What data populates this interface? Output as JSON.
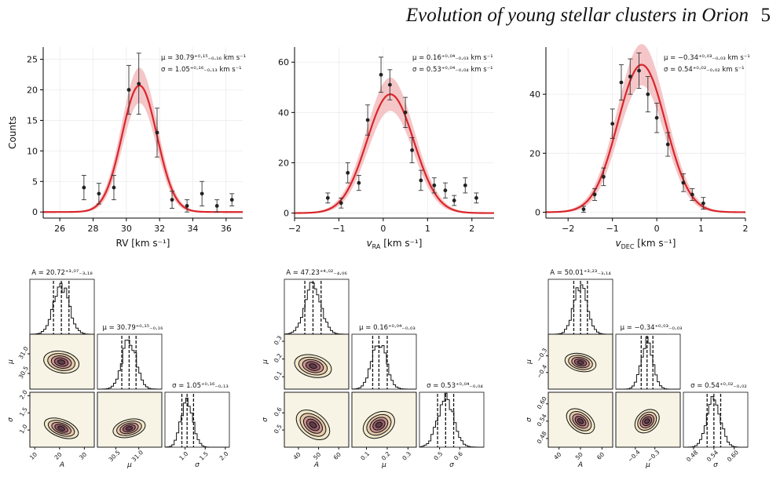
{
  "header": {
    "title": "Evolution of young stellar clusters in Orion",
    "page_number": "5"
  },
  "chart_data": [
    {
      "type": "scatter",
      "xlabel": "RV [km s⁻¹]",
      "ylabel": "Counts",
      "xlim": [
        25.0,
        37.0
      ],
      "ylim": [
        -1,
        27
      ],
      "xticks": [
        26,
        28,
        30,
        32,
        34,
        36
      ],
      "yticks": [
        0,
        5,
        10,
        15,
        20,
        25
      ],
      "points": [
        [
          27.45,
          4
        ],
        [
          28.35,
          3
        ],
        [
          29.25,
          4
        ],
        [
          30.15,
          20
        ],
        [
          30.75,
          21
        ],
        [
          31.85,
          13
        ],
        [
          32.75,
          2
        ],
        [
          33.65,
          1
        ],
        [
          34.55,
          3
        ],
        [
          35.45,
          1
        ],
        [
          36.35,
          2
        ]
      ],
      "errors": [
        2.0,
        1.7,
        2.0,
        4.0,
        5.0,
        4.0,
        1.4,
        1.0,
        2.0,
        1.0,
        1.0
      ],
      "fit": {
        "A": 20.72,
        "mu": 30.79,
        "sigma": 1.05
      },
      "annotations": [
        "μ = 30.79⁺⁰·¹⁵₋₀.₁₆ km s⁻¹",
        "σ = 1.05⁺⁰·¹⁶₋₀.₁₃ km s⁻¹"
      ],
      "grid": true
    },
    {
      "type": "scatter",
      "xlabel": "v_RA [km s⁻¹]",
      "ylabel": "",
      "xlim": [
        -2.0,
        2.5
      ],
      "ylim": [
        -2,
        66
      ],
      "xticks": [
        -2,
        -1,
        0,
        1,
        2
      ],
      "yticks": [
        0,
        20,
        40,
        60
      ],
      "points": [
        [
          -1.25,
          6
        ],
        [
          -0.95,
          4
        ],
        [
          -0.8,
          16
        ],
        [
          -0.55,
          12
        ],
        [
          -0.35,
          37
        ],
        [
          -0.05,
          55
        ],
        [
          0.15,
          51
        ],
        [
          0.5,
          40
        ],
        [
          0.65,
          25
        ],
        [
          0.85,
          13
        ],
        [
          1.15,
          11
        ],
        [
          1.4,
          9
        ],
        [
          1.6,
          5
        ],
        [
          1.85,
          11
        ],
        [
          2.1,
          6
        ]
      ],
      "errors": [
        2,
        2,
        4,
        3,
        6,
        7,
        6,
        6,
        5,
        4,
        3,
        3,
        2,
        3,
        2
      ],
      "fit": {
        "A": 47.23,
        "mu": 0.16,
        "sigma": 0.53
      },
      "annotations": [
        "μ = 0.16⁺⁰·⁰⁴₋₀.₀₃ km s⁻¹",
        "σ = 0.53⁺⁰·⁰⁴₋₀.₀₄ km s⁻¹"
      ],
      "grid": true
    },
    {
      "type": "scatter",
      "xlabel": "v_DEC [km s⁻¹]",
      "ylabel": "",
      "xlim": [
        -2.5,
        2.0
      ],
      "ylim": [
        -2,
        56
      ],
      "xticks": [
        -2,
        -1,
        0,
        1,
        2
      ],
      "yticks": [
        0,
        20,
        40
      ],
      "points": [
        [
          -1.65,
          1
        ],
        [
          -1.4,
          6
        ],
        [
          -1.2,
          12
        ],
        [
          -1.0,
          30
        ],
        [
          -0.8,
          44
        ],
        [
          -0.6,
          46
        ],
        [
          -0.4,
          48
        ],
        [
          -0.2,
          40
        ],
        [
          0.0,
          32
        ],
        [
          0.25,
          23
        ],
        [
          0.6,
          10
        ],
        [
          0.8,
          6
        ],
        [
          1.05,
          3
        ]
      ],
      "errors": [
        1,
        2,
        3,
        5,
        6,
        6,
        6,
        6,
        5,
        4,
        3,
        2,
        2
      ],
      "fit": {
        "A": 50.01,
        "mu": -0.34,
        "sigma": 0.54
      },
      "annotations": [
        "μ = −0.34⁺⁰·⁰³₋₀.₀₃ km s⁻¹",
        "σ = 0.54⁺⁰·⁰²₋₀.₀₂ km s⁻¹"
      ],
      "grid": true
    }
  ],
  "corner_plots": [
    {
      "titles": [
        "A = 20.72⁺³·⁰⁷₋₃.₁₈",
        "μ = 30.79⁺⁰·¹⁵₋₀.₁₆",
        "σ = 1.05⁺⁰·¹⁶₋₀.₁₃"
      ],
      "labels": [
        "A",
        "μ",
        "σ"
      ],
      "ranges": [
        [
          8,
          34
        ],
        [
          30.1,
          31.5
        ],
        [
          0.5,
          2.1
        ]
      ],
      "ticks": [
        [
          10,
          20,
          30
        ],
        [
          30.5,
          31.0
        ],
        [
          1.0,
          1.5,
          2.0
        ]
      ],
      "ticklabels": [
        [
          "10",
          "20",
          "30"
        ],
        [
          "30.5",
          "31.0"
        ],
        [
          "1.0",
          "1.5",
          "2.0"
        ]
      ],
      "medians": [
        20.72,
        30.79,
        1.05
      ],
      "errs": [
        [
          3.18,
          3.07
        ],
        [
          0.16,
          0.15
        ],
        [
          0.13,
          0.16
        ]
      ],
      "corr": [
        -0.1,
        -0.4,
        0.2
      ]
    },
    {
      "titles": [
        "A = 47.23⁺⁴·⁰²₋₄.₀₆",
        "μ = 0.16⁺⁰·⁰⁴₋₀.₀₃",
        "σ = 0.53⁺⁰·⁰⁴₋₀.₀₄"
      ],
      "labels": [
        "A",
        "μ",
        "σ"
      ],
      "ranges": [
        [
          33,
          65
        ],
        [
          0.03,
          0.34
        ],
        [
          0.4,
          0.72
        ]
      ],
      "ticks": [
        [
          40,
          50,
          60
        ],
        [
          0.1,
          0.2,
          0.3
        ],
        [
          0.5,
          0.6
        ]
      ],
      "ticklabels": [
        [
          "40",
          "50",
          "60"
        ],
        [
          "0.1",
          "0.2",
          "0.3"
        ],
        [
          "0.5",
          "0.6"
        ]
      ],
      "medians": [
        47.23,
        0.16,
        0.53
      ],
      "errs": [
        [
          4.06,
          4.02
        ],
        [
          0.03,
          0.04
        ],
        [
          0.04,
          0.04
        ]
      ],
      "corr": [
        -0.15,
        -0.6,
        0.1
      ]
    },
    {
      "titles": [
        "A = 50.01⁺³·²³₋₃.₁₄",
        "μ = −0.34⁺⁰·⁰³₋₀.₀₃",
        "σ = 0.54⁺⁰·⁰²₋₀.₀₂"
      ],
      "labels": [
        "A",
        "μ",
        "σ"
      ],
      "ranges": [
        [
          35,
          65
        ],
        [
          -0.5,
          -0.17
        ],
        [
          0.45,
          0.64
        ]
      ],
      "ticks": [
        [
          40,
          50,
          60
        ],
        [
          -0.4,
          -0.3
        ],
        [
          0.48,
          0.54,
          0.6
        ]
      ],
      "ticklabels": [
        [
          "40",
          "50",
          "60"
        ],
        [
          "−0.4",
          "−0.3"
        ],
        [
          "0.48",
          "0.54",
          "0.60"
        ]
      ],
      "medians": [
        50.01,
        -0.34,
        0.54
      ],
      "errs": [
        [
          3.14,
          3.23
        ],
        [
          0.03,
          0.03
        ],
        [
          0.02,
          0.02
        ]
      ],
      "corr": [
        -0.15,
        -0.6,
        0.1
      ]
    }
  ],
  "colors": {
    "fit_line": "#d9262b",
    "fit_band": "#f2b3b5",
    "contour_bg": "#f7f4e6",
    "data": "#222222"
  }
}
